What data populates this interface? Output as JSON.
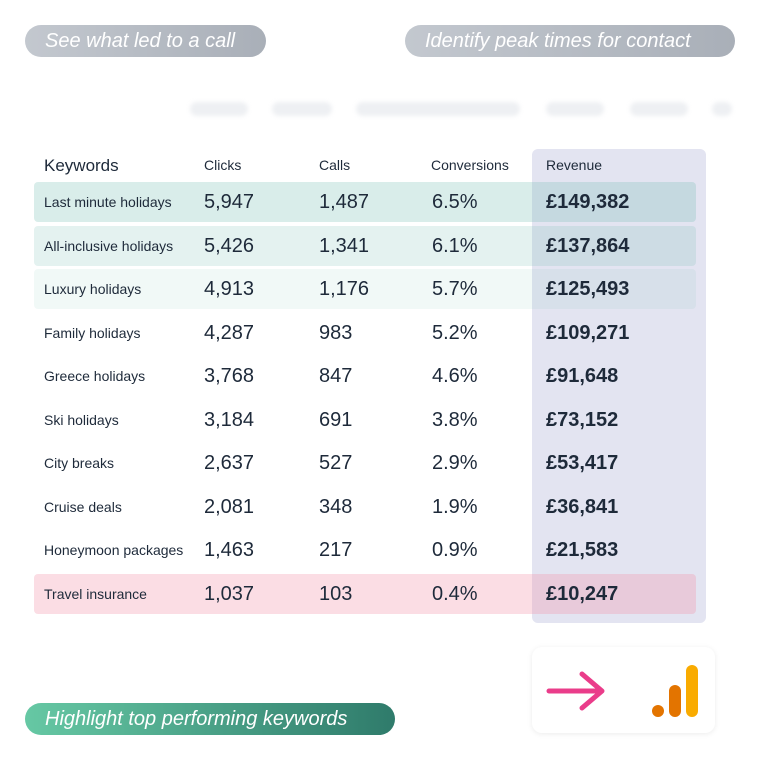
{
  "pills": {
    "call": "See what led to a call",
    "peak": "Identify peak times for contact",
    "top": "Highlight top performing keywords"
  },
  "table": {
    "headers": {
      "keywords": "Keywords",
      "clicks": "Clicks",
      "calls": "Calls",
      "conversions": "Conversions",
      "revenue": "Revenue"
    },
    "rows": [
      {
        "keyword": "Last minute holidays",
        "clicks": "5,947",
        "calls": "1,487",
        "conversions": "6.5%",
        "revenue": "£149,382"
      },
      {
        "keyword": "All-inclusive holidays",
        "clicks": "5,426",
        "calls": "1,341",
        "conversions": "6.1%",
        "revenue": "£137,864"
      },
      {
        "keyword": "Luxury holidays",
        "clicks": "4,913",
        "calls": "1,176",
        "conversions": "5.7%",
        "revenue": "£125,493"
      },
      {
        "keyword": "Family holidays",
        "clicks": "4,287",
        "calls": "983",
        "conversions": "5.2%",
        "revenue": "£109,271"
      },
      {
        "keyword": "Greece holidays",
        "clicks": "3,768",
        "calls": "847",
        "conversions": "4.6%",
        "revenue": "£91,648"
      },
      {
        "keyword": "Ski holidays",
        "clicks": "3,184",
        "calls": "691",
        "conversions": "3.8%",
        "revenue": "£73,152"
      },
      {
        "keyword": "City breaks",
        "clicks": "2,637",
        "calls": "527",
        "conversions": "2.9%",
        "revenue": "£53,417"
      },
      {
        "keyword": "Cruise deals",
        "clicks": "2,081",
        "calls": "348",
        "conversions": "1.9%",
        "revenue": "£36,841"
      },
      {
        "keyword": "Honeymoon packages",
        "clicks": "1,463",
        "calls": "217",
        "conversions": "0.9%",
        "revenue": "£21,583"
      },
      {
        "keyword": "Travel insurance",
        "clicks": "1,037",
        "calls": "103",
        "conversions": "0.4%",
        "revenue": "£10,247"
      }
    ]
  },
  "integration": {
    "arrow_icon": "arrow-right-icon",
    "analytics_icon": "google-analytics-icon"
  },
  "colors": {
    "top_highlight": "#76c0b2",
    "low_highlight": "#f496aa",
    "revenue_column": "#e3e4f1",
    "arrow": "#ea3c8a",
    "analytics_orange": "#f9ab00",
    "analytics_dark": "#e37400"
  }
}
